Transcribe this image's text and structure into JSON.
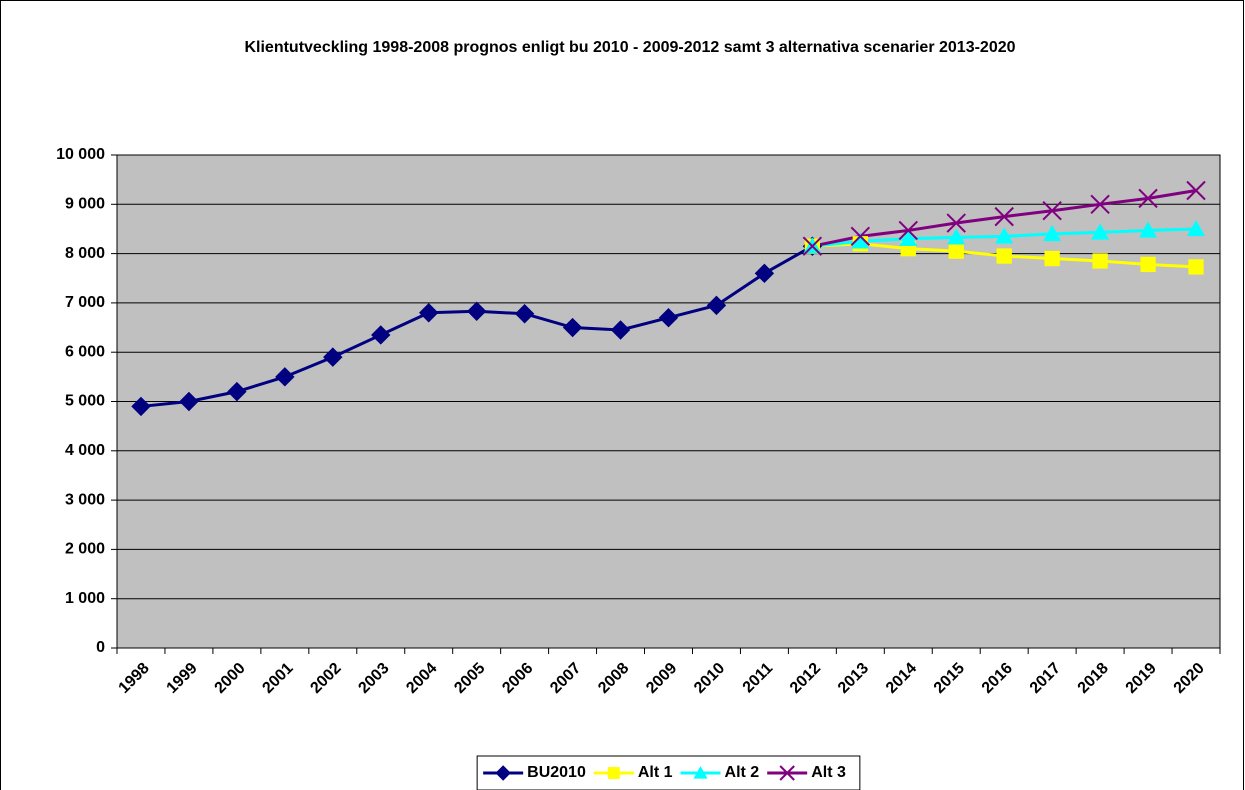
{
  "chart_data": {
    "type": "line",
    "title": "Klientutveckling 1998-2008 prognos enligt bu 2010 - 2009-2012 samt 3 alternativa scenarier 2013-2020",
    "categories": [
      "1998",
      "1999",
      "2000",
      "2001",
      "2002",
      "2003",
      "2004",
      "2005",
      "2006",
      "2007",
      "2008",
      "2009",
      "2010",
      "2011",
      "2012",
      "2013",
      "2014",
      "2015",
      "2016",
      "2017",
      "2018",
      "2019",
      "2020"
    ],
    "series": [
      {
        "name": "BU2010",
        "color": "#000080",
        "marker": "diamond",
        "values": [
          4900,
          5000,
          5200,
          5500,
          5900,
          6350,
          6800,
          6830,
          6780,
          6500,
          6450,
          6700,
          6950,
          7600,
          8150,
          null,
          null,
          null,
          null,
          null,
          null,
          null,
          null
        ]
      },
      {
        "name": "Alt 1",
        "color": "#ffff00",
        "marker": "square",
        "values": [
          null,
          null,
          null,
          null,
          null,
          null,
          null,
          null,
          null,
          null,
          null,
          null,
          null,
          null,
          8150,
          8200,
          8100,
          8050,
          7950,
          7900,
          7850,
          7780,
          7730
        ]
      },
      {
        "name": "Alt 2",
        "color": "#00ffff",
        "marker": "triangle",
        "values": [
          null,
          null,
          null,
          null,
          null,
          null,
          null,
          null,
          null,
          null,
          null,
          null,
          null,
          null,
          8150,
          8250,
          8300,
          8330,
          8350,
          8400,
          8430,
          8470,
          8500
        ]
      },
      {
        "name": "Alt 3",
        "color": "#800080",
        "marker": "x",
        "values": [
          null,
          null,
          null,
          null,
          null,
          null,
          null,
          null,
          null,
          null,
          null,
          null,
          null,
          null,
          8150,
          8350,
          8470,
          8620,
          8750,
          8870,
          9000,
          9120,
          9280
        ]
      }
    ],
    "ylim": [
      0,
      10000
    ],
    "yticks": [
      0,
      {
        "value": 1000,
        "label": "1 000"
      },
      {
        "value": 2000,
        "label": "2 000"
      },
      {
        "value": 3000,
        "label": "3 000"
      },
      {
        "value": 4000,
        "label": "4 000"
      },
      {
        "value": 5000,
        "label": "5 000"
      },
      {
        "value": 6000,
        "label": "6 000"
      },
      {
        "value": 7000,
        "label": "7 000"
      },
      {
        "value": 8000,
        "label": "8 000"
      },
      {
        "value": 9000,
        "label": "9 000"
      },
      {
        "value": 10000,
        "label": "10 000"
      }
    ],
    "grid": true,
    "plot_background": "#c0c0c0",
    "legend": "bottom"
  }
}
